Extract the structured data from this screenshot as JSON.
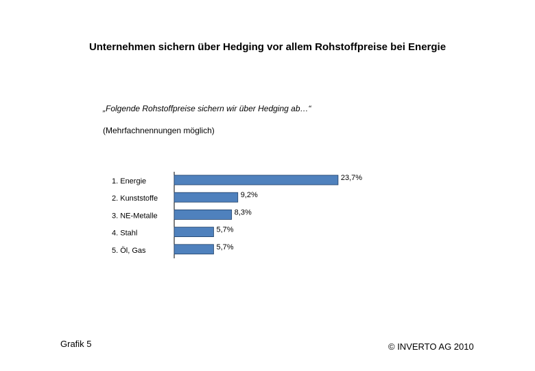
{
  "chart_data": {
    "type": "bar",
    "orientation": "horizontal",
    "title": "Unternehmen sichern über Hedging vor allem Rohstoffpreise bei Energie",
    "subtitle": "„Folgende Rohstoffpreise sichern wir über Hedging ab…“",
    "note": "(Mehrfachnennungen möglich)",
    "categories": [
      "1. Energie",
      "2. Kunststoffe",
      "3. NE-Metalle",
      "4. Stahl",
      "5. Öl, Gas"
    ],
    "values": [
      23.7,
      9.2,
      8.3,
      5.7,
      5.7
    ],
    "value_labels": [
      "23,7%",
      "9,2%",
      "8,3%",
      "5,7%",
      "5,7%"
    ],
    "bar_color": "#4F81BD",
    "xlim": [
      0,
      25
    ],
    "grid": false,
    "legend": "none"
  },
  "footer": {
    "left": "Grafik 5",
    "right": "©  INVERTO AG 2010"
  }
}
